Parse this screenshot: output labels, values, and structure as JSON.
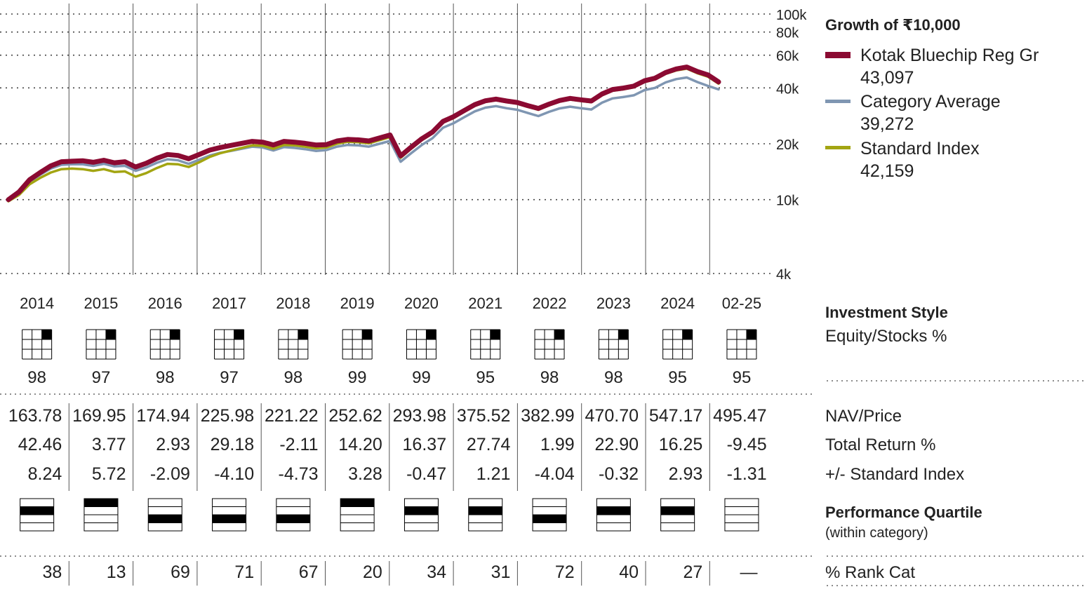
{
  "chart_data": {
    "type": "line",
    "title": "Growth of ₹10,000",
    "y_scale": "log",
    "ylim": [
      4000,
      100000
    ],
    "y_ticks": [
      {
        "value": 100000,
        "label": "100k"
      },
      {
        "value": 80000,
        "label": "80k"
      },
      {
        "value": 60000,
        "label": "60k"
      },
      {
        "value": 40000,
        "label": "40k"
      },
      {
        "value": 20000,
        "label": "20k"
      },
      {
        "value": 10000,
        "label": "10k"
      },
      {
        "value": 4000,
        "label": "4k"
      }
    ],
    "x": [
      "2014-01",
      "2014-03",
      "2014-05",
      "2014-07",
      "2014-09",
      "2014-11",
      "2015-01",
      "2015-03",
      "2015-05",
      "2015-07",
      "2015-09",
      "2015-11",
      "2016-01",
      "2016-03",
      "2016-05",
      "2016-07",
      "2016-09",
      "2016-11",
      "2017-01",
      "2017-03",
      "2017-05",
      "2017-07",
      "2017-09",
      "2017-11",
      "2018-01",
      "2018-03",
      "2018-05",
      "2018-07",
      "2018-09",
      "2018-11",
      "2019-01",
      "2019-03",
      "2019-05",
      "2019-07",
      "2019-09",
      "2019-11",
      "2020-01",
      "2020-03",
      "2020-05",
      "2020-07",
      "2020-09",
      "2020-11",
      "2021-01",
      "2021-03",
      "2021-05",
      "2021-07",
      "2021-09",
      "2021-11",
      "2022-01",
      "2022-03",
      "2022-05",
      "2022-07",
      "2022-09",
      "2022-11",
      "2023-01",
      "2023-03",
      "2023-05",
      "2023-07",
      "2023-09",
      "2023-11",
      "2024-01",
      "2024-03",
      "2024-05",
      "2024-07",
      "2024-09",
      "2024-11",
      "2025-01",
      "2025-02"
    ],
    "series": [
      {
        "name": "Kotak Bluechip Reg Gr",
        "value_label": "43,097",
        "color": "#8B0A32",
        "values": [
          10000,
          11000,
          12800,
          14000,
          15200,
          16000,
          16100,
          16200,
          15900,
          16300,
          15800,
          16000,
          15000,
          15700,
          16700,
          17500,
          17300,
          16600,
          17500,
          18500,
          19100,
          19600,
          20100,
          20600,
          20400,
          19700,
          20600,
          20400,
          20100,
          19700,
          19800,
          20700,
          21100,
          21000,
          20700,
          21500,
          22300,
          17200,
          19200,
          21300,
          23100,
          26400,
          28000,
          30200,
          32500,
          34100,
          34800,
          34000,
          33400,
          32100,
          31000,
          32700,
          34200,
          35100,
          34500,
          34000,
          37100,
          39200,
          39900,
          40900,
          43700,
          45100,
          48400,
          50600,
          51800,
          49000,
          47000,
          43097
        ]
      },
      {
        "name": "Category Average",
        "value_label": "39,272",
        "color": "#7F96B2",
        "values": [
          9900,
          10800,
          12500,
          13600,
          14700,
          15400,
          15500,
          15500,
          15200,
          15600,
          15100,
          15200,
          14300,
          14900,
          15800,
          16500,
          16300,
          15600,
          16400,
          17300,
          17900,
          18300,
          18800,
          19300,
          19100,
          18400,
          19200,
          19000,
          18700,
          18300,
          18500,
          19300,
          19700,
          19600,
          19300,
          20000,
          20700,
          16000,
          17800,
          19700,
          21400,
          24400,
          25800,
          27800,
          29900,
          31300,
          31900,
          31100,
          30500,
          29300,
          28200,
          29700,
          31000,
          31700,
          31100,
          30600,
          33300,
          35100,
          35700,
          36500,
          38900,
          40000,
          42800,
          44600,
          45500,
          43000,
          41000,
          39272
        ]
      },
      {
        "name": "Standard Index",
        "value_label": "42,159",
        "color": "#A3A512",
        "values": [
          9800,
          10600,
          12100,
          13100,
          14000,
          14600,
          14700,
          14600,
          14300,
          14600,
          14100,
          14200,
          13300,
          13900,
          14800,
          15600,
          15500,
          15000,
          15900,
          17000,
          17800,
          18400,
          19000,
          19600,
          19500,
          18800,
          19700,
          19600,
          19300,
          18900,
          19100,
          20000,
          20500,
          20400,
          20100,
          20900,
          21700,
          16800,
          18800,
          20900,
          22700,
          26000,
          27500,
          29700,
          32000,
          33600,
          34300,
          33500,
          32900,
          31600,
          30500,
          32200,
          33700,
          34600,
          34000,
          33500,
          36500,
          38600,
          39300,
          40300,
          43000,
          44400,
          47600,
          49700,
          50800,
          48000,
          46000,
          42159
        ]
      }
    ]
  },
  "legend": {
    "title": "Growth of ₹10,000",
    "items": [
      {
        "name": "Kotak Bluechip Reg Gr",
        "value": "43,097",
        "color": "#8B0A32"
      },
      {
        "name": "Category Average",
        "value": "39,272",
        "color": "#7F96B2"
      },
      {
        "name": "Standard Index",
        "value": "42,159",
        "color": "#A3A512"
      }
    ]
  },
  "years": [
    "2014",
    "2015",
    "2016",
    "2017",
    "2018",
    "2019",
    "2020",
    "2021",
    "2022",
    "2023",
    "2024",
    "02-25"
  ],
  "investment_style": {
    "title": "Investment Style",
    "subtitle": "Equity/Stocks %",
    "equity_pct": [
      "98",
      "97",
      "98",
      "97",
      "98",
      "99",
      "99",
      "95",
      "98",
      "98",
      "95",
      "95"
    ],
    "style_box": "large-growth"
  },
  "rows": [
    {
      "label": "NAV/Price",
      "values": [
        "163.78",
        "169.95",
        "174.94",
        "225.98",
        "221.22",
        "252.62",
        "293.98",
        "375.52",
        "382.99",
        "470.70",
        "547.17",
        "495.47"
      ]
    },
    {
      "label": "Total Return %",
      "values": [
        "42.46",
        "3.77",
        "2.93",
        "29.18",
        "-2.11",
        "14.20",
        "16.37",
        "27.74",
        "1.99",
        "22.90",
        "16.25",
        "-9.45"
      ]
    },
    {
      "label": "+/- Standard Index",
      "values": [
        "8.24",
        "5.72",
        "-2.09",
        "-4.10",
        "-4.73",
        "3.28",
        "-0.47",
        "1.21",
        "-4.04",
        "-0.32",
        "2.93",
        "-1.31"
      ]
    }
  ],
  "performance_quartile": {
    "title": "Performance Quartile",
    "subtitle": "(within category)",
    "quartiles": [
      2,
      1,
      3,
      3,
      3,
      1,
      2,
      2,
      3,
      2,
      2,
      0
    ]
  },
  "rank": {
    "label": "% Rank Cat",
    "values": [
      "38",
      "13",
      "69",
      "71",
      "67",
      "20",
      "34",
      "31",
      "72",
      "40",
      "27",
      "—"
    ]
  }
}
